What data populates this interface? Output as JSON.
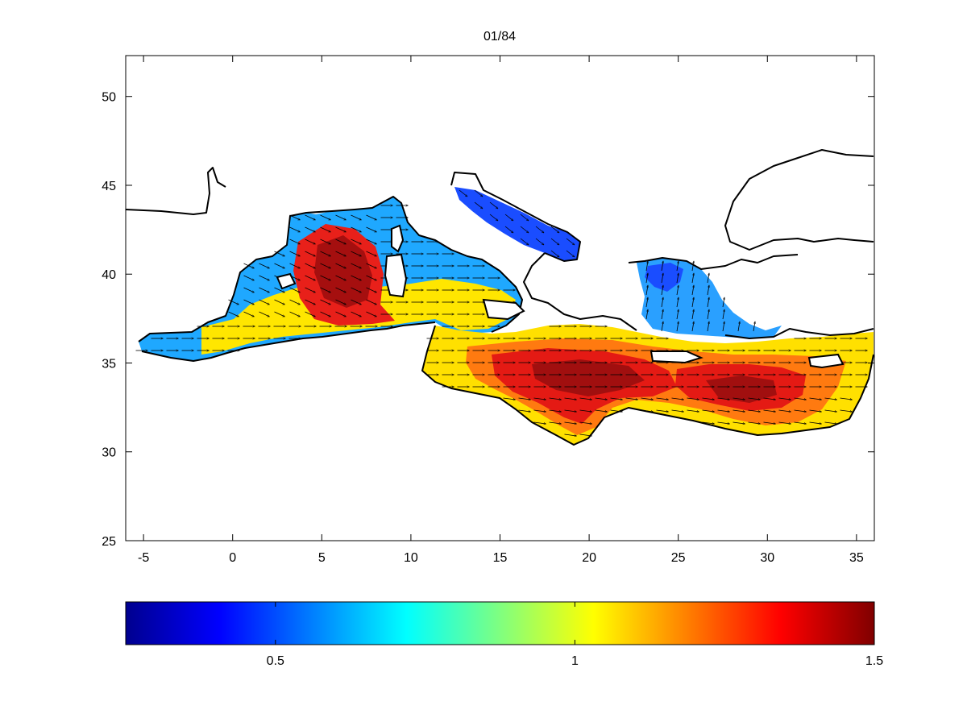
{
  "title": "01/84",
  "map": {
    "region": "Mediterranean Sea",
    "field": "scalar field with current vectors",
    "x_ticks": [
      "-5",
      "0",
      "5",
      "10",
      "15",
      "20",
      "25",
      "30",
      "35"
    ],
    "y_ticks": [
      "25",
      "30",
      "35",
      "40",
      "45",
      "50"
    ],
    "xlim": [
      -6,
      36
    ],
    "ylim": [
      25,
      52.3
    ],
    "colormap": "jet",
    "hotspots": [
      {
        "lon": 6.5,
        "lat": 39.5,
        "value": 1.45
      },
      {
        "lon": 19.5,
        "lat": 34.0,
        "value": 1.45
      },
      {
        "lon": 28.5,
        "lat": 33.0,
        "value": 1.5
      }
    ],
    "low_areas": [
      {
        "name": "Adriatic",
        "value": 0.35
      },
      {
        "name": "North Aegean",
        "value": 0.45
      },
      {
        "name": "Alboran",
        "value": 0.5
      }
    ]
  },
  "colorbar": {
    "range": [
      0.25,
      1.5
    ],
    "ticks": [
      "0.5",
      "1",
      "1.5"
    ]
  },
  "chart_data": {
    "type": "heatmap",
    "title": "01/84",
    "xlabel": "",
    "ylabel": "",
    "xlim": [
      -6,
      36
    ],
    "ylim": [
      25,
      52.3
    ],
    "x_ticks": [
      -5,
      0,
      5,
      10,
      15,
      20,
      25,
      30,
      35
    ],
    "y_ticks": [
      25,
      30,
      35,
      40,
      45,
      50
    ],
    "colorbar_ticks": [
      0.5,
      1,
      1.5
    ],
    "colorbar_range": [
      0.25,
      1.5
    ],
    "grid": false,
    "legend": "colorbar bottom"
  }
}
